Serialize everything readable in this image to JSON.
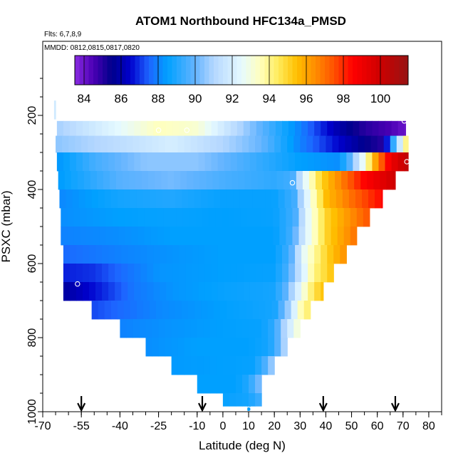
{
  "chart_data": {
    "type": "heatmap",
    "title": "ATOM1 Northbound HFC134a_PMSD",
    "subtitle_flights": "Flts: 6,7,8,9",
    "subtitle_dates": "MMDD: 0812,0815,0817,0820",
    "xlabel": "Latitude (deg N)",
    "ylabel": "PSXC (mbar)",
    "xlim": [
      -70,
      85
    ],
    "ylim": [
      1000,
      0
    ],
    "x_ticks": [
      -70,
      -55,
      -40,
      -25,
      -10,
      0,
      10,
      20,
      30,
      40,
      50,
      60,
      70,
      80
    ],
    "y_ticks": [
      200,
      400,
      600,
      800,
      1000
    ],
    "colorbar": {
      "range": [
        83.5,
        101.5
      ],
      "tick_values": [
        84,
        86,
        88,
        90,
        92,
        94,
        96,
        98,
        100
      ],
      "tick_labels": [
        "84",
        "86",
        "88",
        "90",
        "92",
        "94",
        "96",
        "98",
        "100"
      ]
    },
    "arrows_latitude": [
      -55,
      -8,
      39,
      67
    ],
    "rows": [
      {
        "p_top": 215,
        "p_bot": 255,
        "lat_min": -64.5,
        "lat_max": 71,
        "lat_knots": [
          -64.5,
          -40,
          -25,
          -10,
          10,
          30,
          45,
          55,
          65,
          71
        ],
        "val_knots": [
          90.8,
          92.5,
          93.5,
          93.2,
          90.5,
          88.0,
          86.0,
          85.0,
          84.5,
          84.0
        ]
      },
      {
        "p_top": 255,
        "p_bot": 300,
        "lat_min": -65,
        "lat_max": 72,
        "lat_knots": [
          -65,
          -40,
          -20,
          0,
          15,
          30,
          45,
          55,
          62,
          68,
          72
        ],
        "val_knots": [
          90.5,
          91.3,
          92.0,
          91.0,
          90.0,
          88.0,
          86.5,
          85.5,
          85.0,
          91.0,
          95.0
        ]
      },
      {
        "p_top": 300,
        "p_bot": 350,
        "lat_min": -64.5,
        "lat_max": 72,
        "lat_knots": [
          -64.5,
          -50,
          -30,
          -10,
          10,
          30,
          45,
          50,
          55,
          60,
          65,
          72
        ],
        "val_knots": [
          88.3,
          89.5,
          90.5,
          90.5,
          89.5,
          88.5,
          88.2,
          90.0,
          93.0,
          96.5,
          99.0,
          100.5
        ]
      },
      {
        "p_top": 350,
        "p_bot": 400,
        "lat_min": -64,
        "lat_max": 67,
        "lat_knots": [
          -64,
          -40,
          -20,
          0,
          20,
          27,
          32,
          38,
          45,
          55,
          67
        ],
        "val_knots": [
          88.4,
          89.8,
          90.2,
          89.6,
          89.2,
          89.5,
          92.5,
          95.0,
          96.5,
          98.5,
          100.0
        ]
      },
      {
        "p_top": 400,
        "p_bot": 450,
        "lat_min": -63.5,
        "lat_max": 62,
        "lat_knots": [
          -63.5,
          -40,
          -20,
          0,
          20,
          28,
          33,
          40,
          50,
          62
        ],
        "val_knots": [
          88.1,
          88.8,
          89.0,
          88.6,
          88.6,
          89.5,
          92.5,
          95.5,
          97.0,
          98.5
        ]
      },
      {
        "p_top": 450,
        "p_bot": 500,
        "lat_min": -63,
        "lat_max": 57,
        "lat_knots": [
          -63,
          -40,
          -20,
          0,
          20,
          28,
          33,
          40,
          50,
          57
        ],
        "val_knots": [
          88.2,
          88.5,
          88.6,
          88.5,
          88.6,
          89.5,
          92.5,
          95.0,
          96.5,
          97.5
        ]
      },
      {
        "p_top": 500,
        "p_bot": 550,
        "lat_min": -63,
        "lat_max": 52,
        "lat_knots": [
          -63,
          -40,
          -20,
          0,
          20,
          27,
          33,
          40,
          52
        ],
        "val_knots": [
          88.0,
          88.2,
          88.5,
          88.5,
          88.5,
          89.5,
          92.5,
          95.0,
          97.0
        ]
      },
      {
        "p_top": 550,
        "p_bot": 600,
        "lat_min": -62,
        "lat_max": 48,
        "lat_knots": [
          -62,
          -40,
          -20,
          0,
          20,
          26,
          32,
          40,
          48
        ],
        "val_knots": [
          87.6,
          88.0,
          88.3,
          88.5,
          88.5,
          89.5,
          92.8,
          95.0,
          96.5
        ]
      },
      {
        "p_top": 600,
        "p_bot": 650,
        "lat_min": -62,
        "lat_max": 43,
        "lat_knots": [
          -62,
          -50,
          -40,
          -25,
          0,
          20,
          25,
          30,
          35,
          43
        ],
        "val_knots": [
          86.8,
          87.0,
          87.6,
          88.3,
          88.5,
          88.6,
          89.5,
          91.5,
          94.0,
          95.5
        ]
      },
      {
        "p_top": 650,
        "p_bot": 700,
        "lat_min": -62,
        "lat_max": 39,
        "lat_knots": [
          -62,
          -55,
          -45,
          -35,
          -20,
          0,
          20,
          25,
          30,
          35,
          39
        ],
        "val_knots": [
          85.8,
          86.3,
          87.0,
          87.8,
          88.3,
          88.6,
          88.8,
          90.0,
          92.5,
          94.5,
          95.5
        ]
      },
      {
        "p_top": 700,
        "p_bot": 750,
        "lat_min": -51,
        "lat_max": 34,
        "lat_knots": [
          -51,
          -40,
          -25,
          0,
          20,
          25,
          30,
          34
        ],
        "val_knots": [
          87.2,
          87.6,
          88.1,
          88.5,
          88.8,
          90.5,
          93.5,
          94.5
        ]
      },
      {
        "p_top": 750,
        "p_bot": 800,
        "lat_min": -40,
        "lat_max": 30,
        "lat_knots": [
          -40,
          -20,
          0,
          15,
          20,
          25,
          30
        ],
        "val_knots": [
          88.0,
          88.3,
          88.5,
          88.6,
          89.2,
          91.5,
          93.5
        ]
      },
      {
        "p_top": 800,
        "p_bot": 850,
        "lat_min": -30,
        "lat_max": 25,
        "lat_knots": [
          -30,
          -10,
          10,
          18,
          22,
          25
        ],
        "val_knots": [
          88.2,
          88.5,
          88.5,
          88.8,
          90.0,
          91.5
        ]
      },
      {
        "p_top": 850,
        "p_bot": 900,
        "lat_min": -20,
        "lat_max": 20,
        "lat_knots": [
          -20,
          0,
          12,
          16,
          20
        ],
        "val_knots": [
          88.4,
          88.5,
          88.6,
          89.5,
          91.0
        ]
      },
      {
        "p_top": 900,
        "p_bot": 950,
        "lat_min": -10,
        "lat_max": 15,
        "lat_knots": [
          -10,
          5,
          10,
          15
        ],
        "val_knots": [
          88.5,
          88.5,
          89.0,
          90.5
        ]
      },
      {
        "p_top": 950,
        "p_bot": 985,
        "lat_min": 0,
        "lat_max": 15,
        "lat_knots": [
          0,
          10,
          15
        ],
        "val_knots": [
          88.6,
          88.8,
          89.5
        ]
      },
      {
        "p_top": 985,
        "p_bot": 1000,
        "lat_min": 9.5,
        "lat_max": 10.5,
        "lat_knots": [
          9.5,
          10.5
        ],
        "val_knots": [
          88.6,
          88.6
        ]
      },
      {
        "p_top": 160,
        "p_bot": 210,
        "lat_min": -65.6,
        "lat_max": -65.0,
        "lat_knots": [
          -65.6,
          -65.0
        ],
        "val_knots": [
          91.8,
          91.8
        ]
      }
    ],
    "points": [
      {
        "lat": -25,
        "p": 240
      },
      {
        "lat": -14,
        "p": 240
      },
      {
        "lat": 70.5,
        "p": 215
      },
      {
        "lat": 71.5,
        "p": 325
      },
      {
        "lat": 27,
        "p": 382
      },
      {
        "lat": -56.5,
        "p": 655
      },
      {
        "lat": 10,
        "p": 993
      }
    ]
  }
}
